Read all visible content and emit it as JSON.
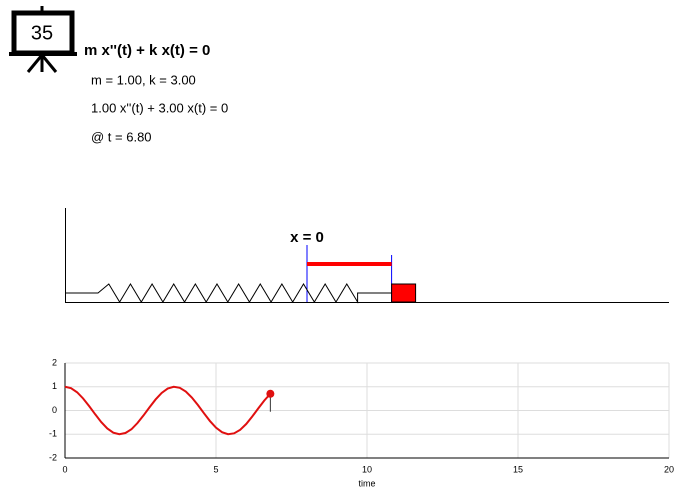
{
  "header": {
    "icon_label": "35",
    "equation": "m x''(t) + k x(t) = 0",
    "params": "m = 1.00, k = 3.00",
    "instance": "1.00 x''(t) + 3.00 x(t) = 0",
    "time": "@ t = 6.80"
  },
  "diagram": {
    "equilibrium_label": "x = 0"
  },
  "chart_data": {
    "type": "line",
    "x_label": "time",
    "x": [
      0,
      0.2,
      0.4,
      0.6,
      0.8,
      1.0,
      1.2,
      1.4,
      1.6,
      1.8,
      2.0,
      2.2,
      2.4,
      2.6,
      2.8,
      3.0,
      3.2,
      3.4,
      3.6,
      3.8,
      4.0,
      4.2,
      4.4,
      4.6,
      4.8,
      5.0,
      5.2,
      5.4,
      5.6,
      5.8,
      6.0,
      6.2,
      6.4,
      6.6,
      6.8
    ],
    "values": [
      1,
      0.941,
      0.769,
      0.506,
      0.184,
      -0.16,
      -0.487,
      -0.755,
      -0.933,
      -1.0,
      -0.948,
      -0.79,
      -0.527,
      -0.207,
      0.137,
      0.465,
      0.738,
      0.923,
      0.999,
      0.956,
      0.799,
      0.548,
      0.231,
      -0.113,
      -0.444,
      -0.722,
      -0.914,
      -0.997,
      -0.962,
      -0.813,
      -0.569,
      -0.254,
      0.089,
      0.422,
      0.705
    ],
    "color": "#e01010",
    "xlim": [
      0,
      20
    ],
    "xticks": [
      0,
      5,
      10,
      15,
      20
    ],
    "ylim": [
      -2,
      2
    ],
    "yticks": [
      -2,
      -1,
      0,
      1,
      2
    ],
    "grid": true
  }
}
